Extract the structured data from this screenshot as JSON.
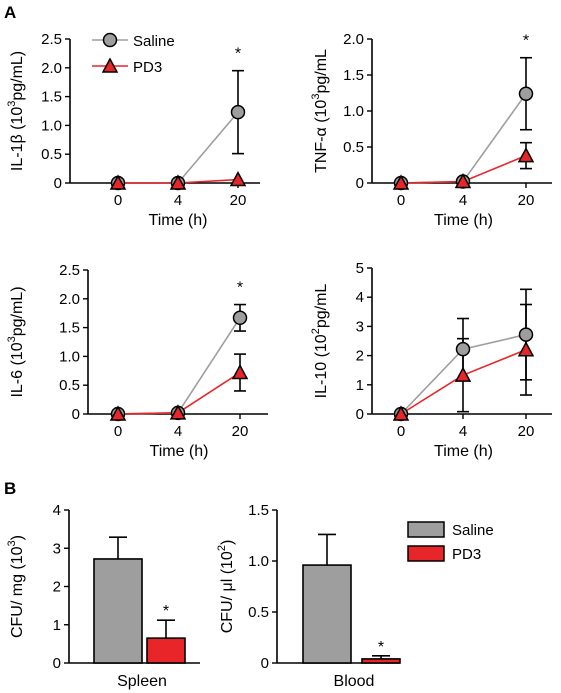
{
  "panels": [
    {
      "letter": "A"
    },
    {
      "letter": "B"
    }
  ],
  "legend": {
    "line_items": [
      {
        "label": "Saline",
        "marker": "circle-icon"
      },
      {
        "label": "PD3",
        "marker": "triangle-icon"
      }
    ],
    "bar_items": [
      {
        "label": "Saline"
      },
      {
        "label": "PD3"
      }
    ]
  },
  "colors": {
    "saline": "#9e9e9e",
    "pd3": "#e8262a",
    "axis": "#000000"
  },
  "chart_data": [
    {
      "type": "line",
      "id": "il1b",
      "ylabel_pre": "IL-1β (10",
      "ylabel_sup": "3",
      "ylabel_post": "pg/mL)",
      "xlabel": "Time (h)",
      "categories": [
        "0",
        "4",
        "20"
      ],
      "yticks": [
        "0",
        "0.5",
        "1.0",
        "1.5",
        "2.0",
        "2.5"
      ],
      "ylim": [
        0,
        2.5
      ],
      "series": [
        {
          "name": "Saline",
          "values": [
            0,
            0,
            1.23
          ],
          "errors": [
            0,
            0,
            0.72
          ]
        },
        {
          "name": "PD3",
          "values": [
            0,
            0,
            0.06
          ],
          "errors": [
            0,
            0,
            0
          ]
        }
      ],
      "annotations": [
        {
          "text": "*",
          "category_index": 2
        }
      ]
    },
    {
      "type": "line",
      "id": "tnfa",
      "ylabel_pre": "TNF-α (10",
      "ylabel_sup": "3",
      "ylabel_post": "pg/mL",
      "xlabel": "Time (h)",
      "categories": [
        "0",
        "4",
        "20"
      ],
      "yticks": [
        "0",
        "0.5",
        "1.0",
        "1.5",
        "2.0"
      ],
      "ylim": [
        0,
        2.0
      ],
      "series": [
        {
          "name": "Saline",
          "values": [
            0,
            0.02,
            1.24
          ],
          "errors": [
            0,
            0,
            0.5
          ]
        },
        {
          "name": "PD3",
          "values": [
            0,
            0.02,
            0.38
          ],
          "errors": [
            0,
            0,
            0.18
          ]
        }
      ],
      "annotations": [
        {
          "text": "*",
          "category_index": 2
        }
      ]
    },
    {
      "type": "line",
      "id": "il6",
      "ylabel_pre": "IL-6 (10",
      "ylabel_sup": "3",
      "ylabel_post": "pg/mL)",
      "xlabel": "Time (h)",
      "categories": [
        "0",
        "4",
        "20"
      ],
      "yticks": [
        "0",
        "0.5",
        "1.0",
        "1.5",
        "2.0",
        "2.5"
      ],
      "ylim": [
        0,
        2.5
      ],
      "series": [
        {
          "name": "Saline",
          "values": [
            0,
            0.02,
            1.67
          ],
          "errors": [
            0,
            0,
            0.23
          ]
        },
        {
          "name": "PD3",
          "values": [
            0,
            0.02,
            0.72
          ],
          "errors": [
            0,
            0,
            0.32
          ]
        }
      ],
      "annotations": [
        {
          "text": "*",
          "category_index": 2
        }
      ]
    },
    {
      "type": "line",
      "id": "il10",
      "ylabel_pre": "IL-10 (10",
      "ylabel_sup": "2",
      "ylabel_post": "pg/mL",
      "xlabel": "Time (h)",
      "categories": [
        "0",
        "4",
        "20"
      ],
      "yticks": [
        "0",
        "1",
        "2",
        "3",
        "4",
        "5"
      ],
      "ylim": [
        0,
        5
      ],
      "series": [
        {
          "name": "Saline",
          "values": [
            0,
            2.22,
            2.72
          ],
          "errors": [
            0,
            1.05,
            1.55
          ]
        },
        {
          "name": "PD3",
          "values": [
            0,
            1.33,
            2.2
          ],
          "errors": [
            0,
            1.25,
            1.55
          ]
        }
      ],
      "annotations": []
    },
    {
      "type": "bar",
      "id": "spleen",
      "ylabel_pre": "CFU/ mg (10",
      "ylabel_sup": "3",
      "ylabel_post": ")",
      "xlabel": "Spleen",
      "yticks": [
        "0",
        "1",
        "2",
        "3",
        "4"
      ],
      "ylim": [
        0,
        4
      ],
      "series": [
        {
          "name": "Saline",
          "values": [
            2.72
          ],
          "errors": [
            0.57
          ]
        },
        {
          "name": "PD3",
          "values": [
            0.65
          ],
          "errors": [
            0.47
          ]
        }
      ],
      "annotations": [
        {
          "text": "*",
          "series_index": 1
        }
      ]
    },
    {
      "type": "bar",
      "id": "blood",
      "ylabel_pre": "CFU/ μl (10",
      "ylabel_sup": "2",
      "ylabel_post": ")",
      "xlabel": "Blood",
      "yticks": [
        "0",
        "0.5",
        "1.0",
        "1.5"
      ],
      "ylim": [
        0,
        1.5
      ],
      "series": [
        {
          "name": "Saline",
          "values": [
            0.96
          ],
          "errors": [
            0.3
          ]
        },
        {
          "name": "PD3",
          "values": [
            0.04
          ],
          "errors": [
            0.03
          ]
        }
      ],
      "annotations": [
        {
          "text": "*",
          "series_index": 1
        }
      ]
    }
  ]
}
